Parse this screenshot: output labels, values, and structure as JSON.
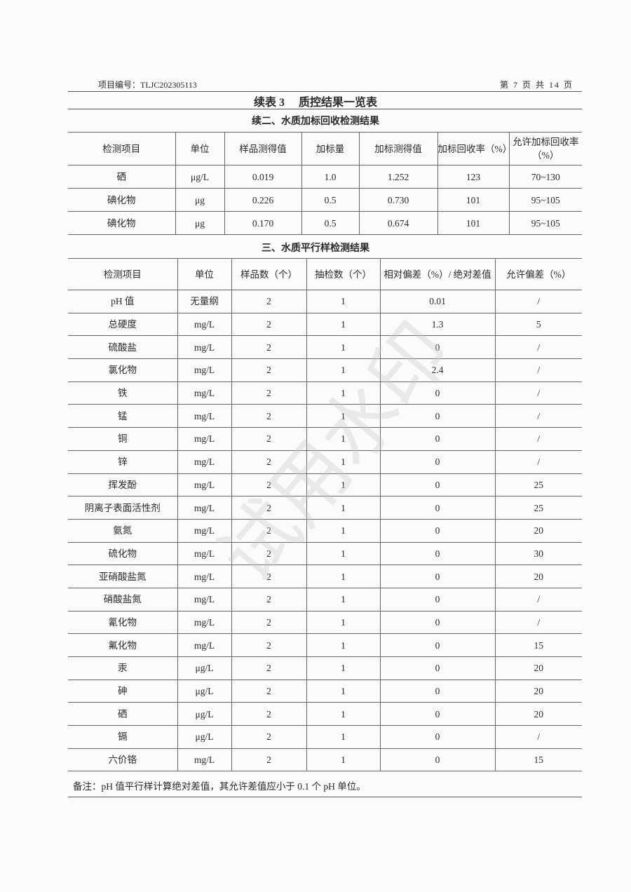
{
  "header": {
    "project_no": "项目编号：TLJC202305113",
    "page": "第 7 页 共 14 页"
  },
  "title": "续表 3　 质控结果一览表",
  "spike": {
    "subtitle": "续二、水质加标回收检测结果",
    "columns": [
      "检测项目",
      "单位",
      "样品测得值",
      "加标量",
      "加标测得值",
      "加标回收率（%）",
      "允许加标回收率（%）"
    ],
    "rows": [
      [
        "硒",
        "μg/L",
        "0.019",
        "1.0",
        "1.252",
        "123",
        "70~130"
      ],
      [
        "碘化物",
        "μg",
        "0.226",
        "0.5",
        "0.730",
        "101",
        "95~105"
      ],
      [
        "碘化物",
        "μg",
        "0.170",
        "0.5",
        "0.674",
        "101",
        "95~105"
      ]
    ]
  },
  "parallel": {
    "subtitle": "三、水质平行样检测结果",
    "columns": [
      "检测项目",
      "单位",
      "样品数（个）",
      "抽检数（个）",
      "相对偏差（%）/ 绝对差值",
      "允许偏差（%）"
    ],
    "rows": [
      [
        "pH 值",
        "无量纲",
        "2",
        "1",
        "0.01",
        "/"
      ],
      [
        "总硬度",
        "mg/L",
        "2",
        "1",
        "1.3",
        "5"
      ],
      [
        "硫酸盐",
        "mg/L",
        "2",
        "1",
        "0",
        "/"
      ],
      [
        "氯化物",
        "mg/L",
        "2",
        "1",
        "2.4",
        "/"
      ],
      [
        "铁",
        "mg/L",
        "2",
        "1",
        "0",
        "/"
      ],
      [
        "锰",
        "mg/L",
        "2",
        "1",
        "0",
        "/"
      ],
      [
        "铜",
        "mg/L",
        "2",
        "1",
        "0",
        "/"
      ],
      [
        "锌",
        "mg/L",
        "2",
        "1",
        "0",
        "/"
      ],
      [
        "挥发酚",
        "mg/L",
        "2",
        "1",
        "0",
        "25"
      ],
      [
        "阴离子表面活性剂",
        "mg/L",
        "2",
        "1",
        "0",
        "25"
      ],
      [
        "氨氮",
        "mg/L",
        "2",
        "1",
        "0",
        "20"
      ],
      [
        "硫化物",
        "mg/L",
        "2",
        "1",
        "0",
        "30"
      ],
      [
        "亚硝酸盐氮",
        "mg/L",
        "2",
        "1",
        "0",
        "20"
      ],
      [
        "硝酸盐氮",
        "mg/L",
        "2",
        "1",
        "0",
        "/"
      ],
      [
        "氰化物",
        "mg/L",
        "2",
        "1",
        "0",
        "/"
      ],
      [
        "氟化物",
        "mg/L",
        "2",
        "1",
        "0",
        "15"
      ],
      [
        "汞",
        "μg/L",
        "2",
        "1",
        "0",
        "20"
      ],
      [
        "砷",
        "μg/L",
        "2",
        "1",
        "0",
        "20"
      ],
      [
        "硒",
        "μg/L",
        "2",
        "1",
        "0",
        "20"
      ],
      [
        "镉",
        "μg/L",
        "2",
        "1",
        "0",
        "/"
      ],
      [
        "六价铬",
        "mg/L",
        "2",
        "1",
        "0",
        "15"
      ]
    ]
  },
  "note": "备注：pH 值平行样计算绝对差值，其允许差值应小于 0.1 个 pH 单位。",
  "watermark": "试用水印"
}
